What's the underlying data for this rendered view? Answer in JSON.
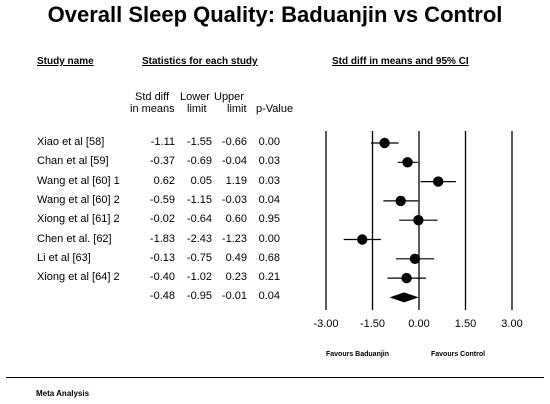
{
  "title": "Overall Sleep Quality: Baduanjin vs Control",
  "headers": {
    "study_name": "Study name",
    "statistics": "Statistics for each study",
    "ci_header": "Std diff in means and 95% CI",
    "col_std_diff_1": "Std diff",
    "col_std_diff_2": "in means",
    "col_lower_1": "Lower",
    "col_lower_2": "limit",
    "col_upper_1": "Upper",
    "col_upper_2": "limit",
    "col_p": "p-Value"
  },
  "chart_data": {
    "type": "forest",
    "xlim": [
      -3.0,
      3.0
    ],
    "ticks": [
      "-3.00",
      "-1.50",
      "0.00",
      "1.50",
      "3.00"
    ],
    "tick_values": [
      -3.0,
      -1.5,
      0.0,
      1.5,
      3.0
    ],
    "favours_left": "Favours Baduanjin",
    "favours_right": "Favours Control",
    "studies": [
      {
        "name": "Xiao et al  [58]",
        "smd": -1.11,
        "lower": -1.55,
        "upper": -0.66,
        "p": "0.00",
        "smd_text": "-1.11",
        "lower_text": "-1.55",
        "upper_text": "-0.66"
      },
      {
        "name": "Chan et al [59]",
        "smd": -0.37,
        "lower": -0.69,
        "upper": -0.04,
        "p": "0.03",
        "smd_text": "-0.37",
        "lower_text": "-0.69",
        "upper_text": "-0.04"
      },
      {
        "name": "Wang et al [60] 1",
        "smd": 0.62,
        "lower": 0.05,
        "upper": 1.19,
        "p": "0.03",
        "smd_text": "0.62",
        "lower_text": "0.05",
        "upper_text": "1.19"
      },
      {
        "name": "Wang et al [60] 2",
        "smd": -0.59,
        "lower": -1.15,
        "upper": -0.03,
        "p": "0.04",
        "smd_text": "-0.59",
        "lower_text": "-1.15",
        "upper_text": "-0.03"
      },
      {
        "name": "Xiong et al [61] 2",
        "smd": -0.02,
        "lower": -0.64,
        "upper": 0.6,
        "p": "0.95",
        "smd_text": "-0.02",
        "lower_text": "-0.64",
        "upper_text": "0.60"
      },
      {
        "name": "Chen et al. [62]",
        "smd": -1.83,
        "lower": -2.43,
        "upper": -1.23,
        "p": "0.00",
        "smd_text": "-1.83",
        "lower_text": "-2.43",
        "upper_text": "-1.23"
      },
      {
        "name": "Li et al [63]",
        "smd": -0.13,
        "lower": -0.75,
        "upper": 0.49,
        "p": "0.68",
        "smd_text": "-0.13",
        "lower_text": "-0.75",
        "upper_text": "0.49"
      },
      {
        "name": "Xiong et al [64] 2",
        "smd": -0.4,
        "lower": -1.02,
        "upper": 0.23,
        "p": "0.21",
        "smd_text": "-0.40",
        "lower_text": "-1.02",
        "upper_text": "0.23"
      }
    ],
    "pooled": {
      "smd": -0.48,
      "lower": -0.95,
      "upper": -0.01,
      "p": "0.04",
      "smd_text": "-0.48",
      "lower_text": "-0.95",
      "upper_text": "-0.01"
    }
  },
  "footer": "Meta Analysis"
}
